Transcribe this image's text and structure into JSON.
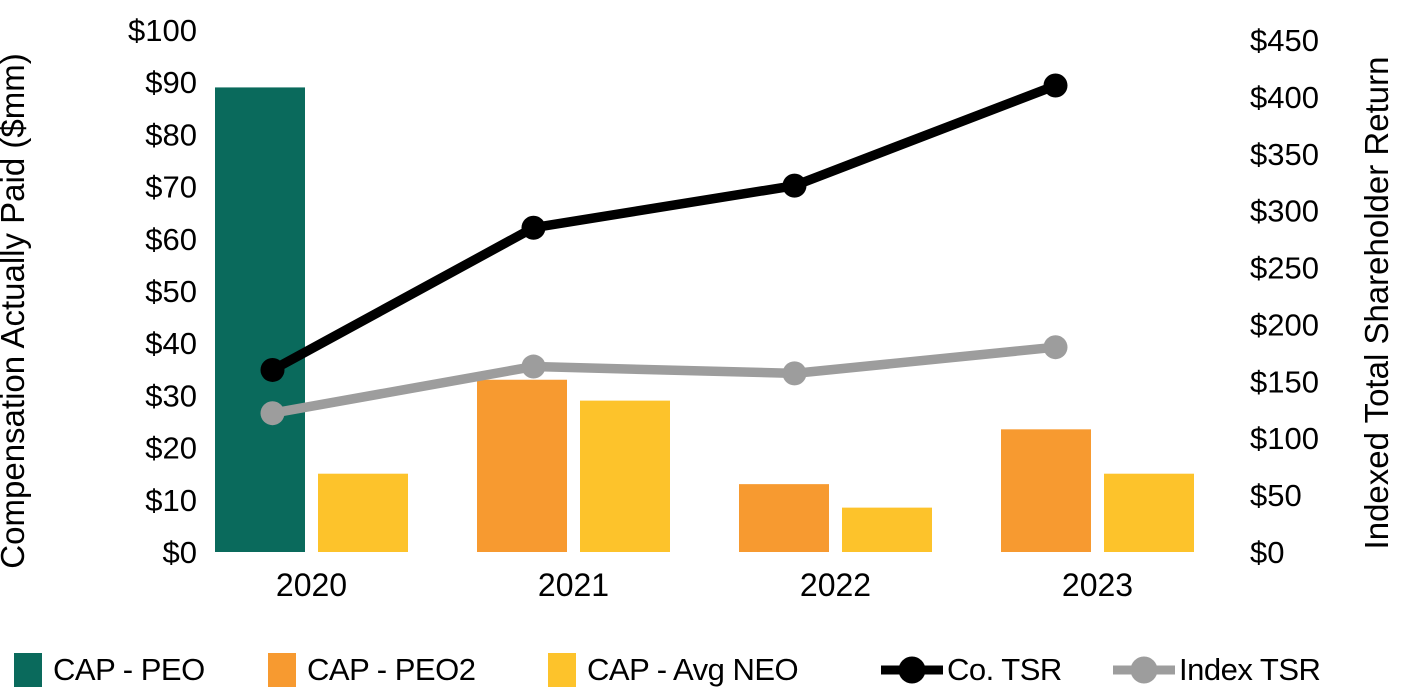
{
  "chart_data": {
    "type": "bar+line combo, dual y-axis",
    "categories": [
      "2020",
      "2021",
      "2022",
      "2023"
    ],
    "bar_series": [
      {
        "name": "CAP - PEO",
        "color": "#0A6A5C",
        "axis": "left",
        "values": [
          89,
          0,
          0,
          0
        ]
      },
      {
        "name": "CAP - PEO2",
        "color": "#F79A30",
        "axis": "left",
        "values": [
          0,
          33,
          13,
          23.5
        ]
      },
      {
        "name": "CAP - Avg NEO",
        "color": "#FDC32B",
        "axis": "left",
        "values": [
          15,
          29,
          8.5,
          15
        ]
      }
    ],
    "line_series": [
      {
        "name": "Co. TSR",
        "color": "#000000",
        "axis": "right",
        "values": [
          160,
          285,
          322,
          410
        ]
      },
      {
        "name": "Index TSR",
        "color": "#9D9D9D",
        "axis": "right",
        "values": [
          122,
          163,
          157,
          180
        ]
      }
    ],
    "left_axis": {
      "label": "Compensation Actually Paid ($mm)",
      "tick_prefix": "$",
      "ticks": [
        0,
        10,
        20,
        30,
        40,
        50,
        60,
        70,
        80,
        90,
        100
      ],
      "range": [
        0,
        100
      ]
    },
    "right_axis": {
      "label": "Indexed Total Shareholder Return",
      "tick_prefix": "$",
      "ticks": [
        0,
        50,
        100,
        150,
        200,
        250,
        300,
        350,
        400,
        450
      ],
      "range": [
        0,
        450
      ]
    },
    "grid": false,
    "legend_position": "bottom"
  },
  "legend": {
    "items": [
      {
        "label": "CAP - PEO",
        "marker": "square",
        "color": "#0A6A5C"
      },
      {
        "label": "CAP - PEO2",
        "marker": "square",
        "color": "#F79A30"
      },
      {
        "label": "CAP - Avg NEO",
        "marker": "square",
        "color": "#FDC32B"
      },
      {
        "label": "Co. TSR",
        "marker": "line-dot",
        "color": "#000000"
      },
      {
        "label": "Index TSR",
        "marker": "line-dot",
        "color": "#9D9D9D"
      }
    ]
  },
  "colors": {
    "text": "#000000",
    "background": "#FFFFFF"
  }
}
